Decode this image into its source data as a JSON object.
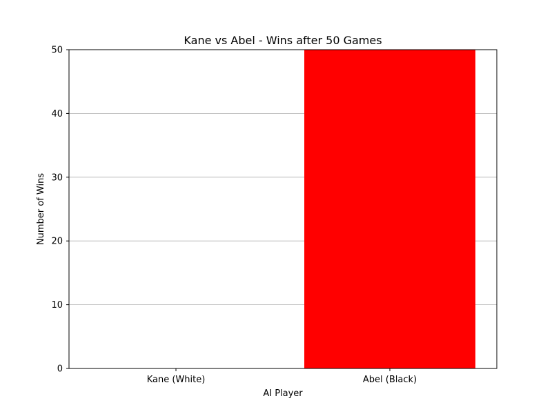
{
  "chart_data": {
    "type": "bar",
    "title": "Kane vs Abel - Wins after 50 Games",
    "xlabel": "AI Player",
    "ylabel": "Number of Wins",
    "categories": [
      "Kane (White)",
      "Abel (Black)"
    ],
    "values": [
      0,
      50
    ],
    "bar_colors": [
      "#ffffff",
      "#ff0000"
    ],
    "ylim": [
      0,
      50
    ],
    "yticks": [
      0,
      10,
      20,
      30,
      40,
      50
    ],
    "grid": "y-axis",
    "legend": "none"
  }
}
